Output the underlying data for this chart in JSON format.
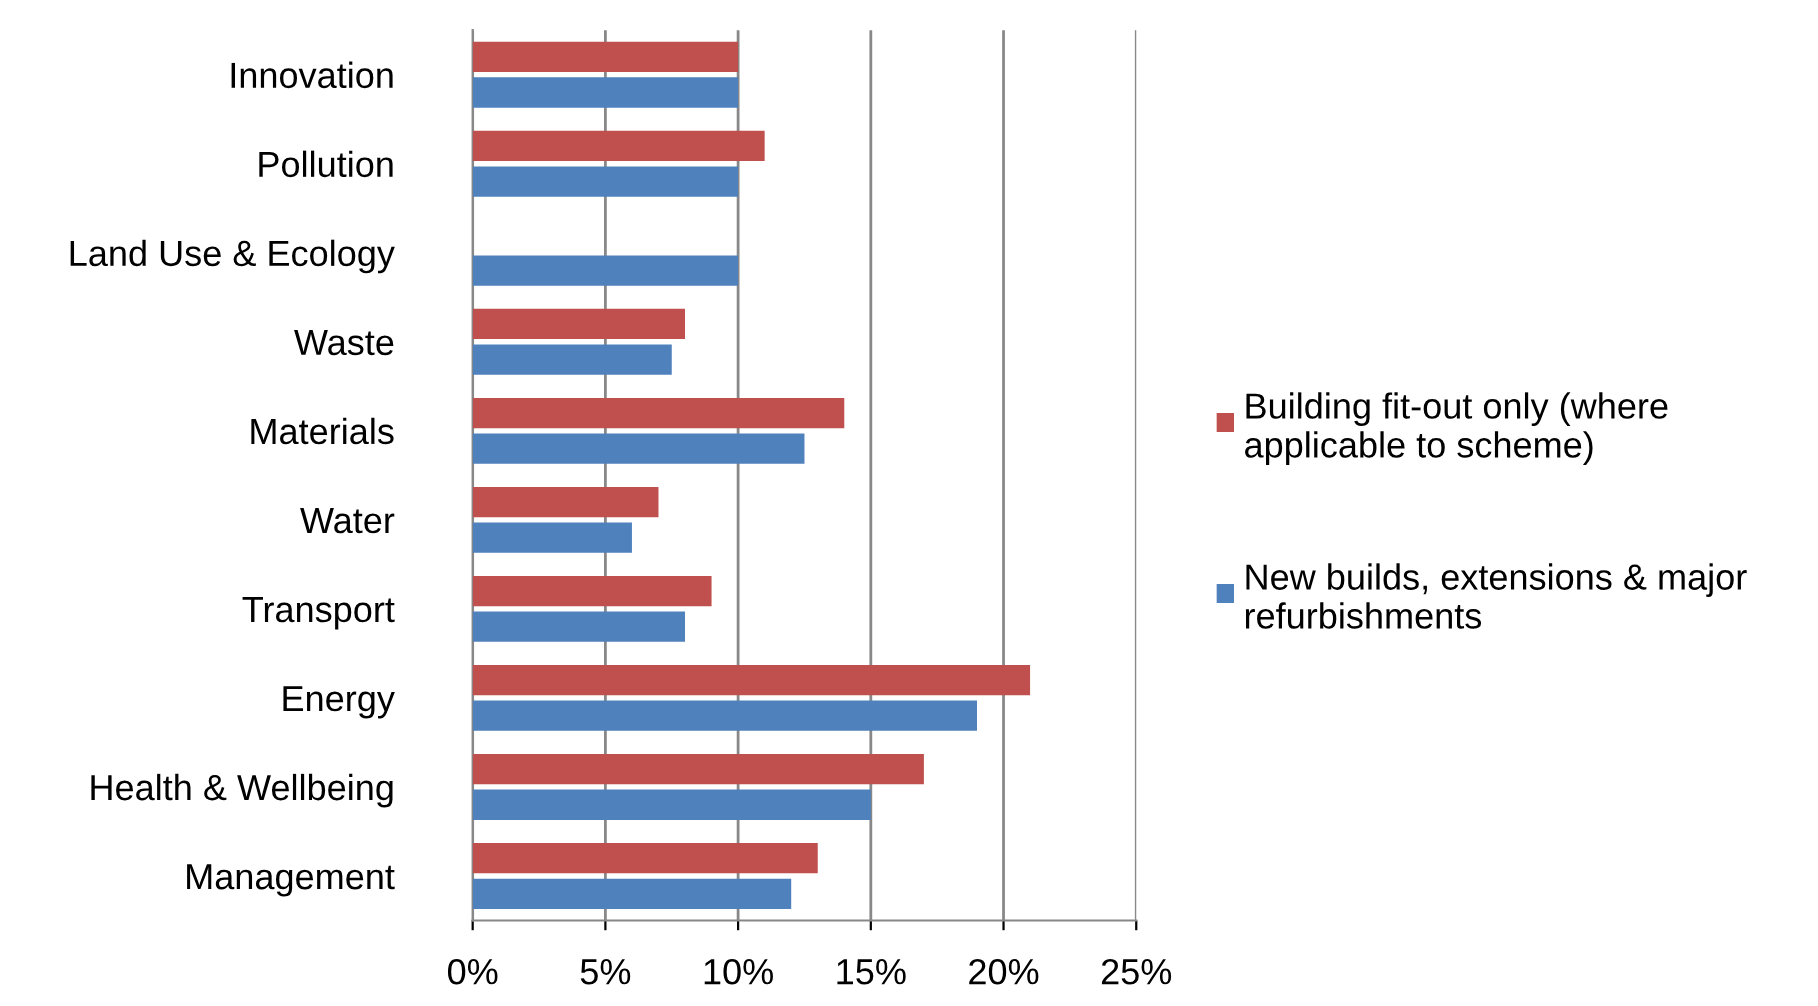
{
  "chart_data": {
    "type": "bar",
    "orientation": "horizontal",
    "categories": [
      "Innovation",
      "Pollution",
      "Land Use & Ecology",
      "Waste",
      "Materials",
      "Water",
      "Transport",
      "Energy",
      "Health & Wellbeing",
      "Management"
    ],
    "series": [
      {
        "name": "Building fit-out only (where applicable to scheme)",
        "color": "#c0504d",
        "values": [
          10,
          11,
          0,
          8,
          14,
          7,
          9,
          21,
          17,
          13
        ]
      },
      {
        "name": "New builds, extensions & major refurbishments",
        "color": "#4f81bd",
        "values": [
          10,
          10,
          10,
          7.5,
          12.5,
          6,
          8,
          19,
          15,
          12
        ]
      }
    ],
    "xlim": [
      0,
      25
    ],
    "xticks": [
      {
        "value": 0,
        "label": "0%"
      },
      {
        "value": 5,
        "label": "5%"
      },
      {
        "value": 10,
        "label": "10%"
      },
      {
        "value": 15,
        "label": "15%"
      },
      {
        "value": 20,
        "label": "20%"
      },
      {
        "value": 25,
        "label": "25%"
      }
    ],
    "grid": "x",
    "legend": "right"
  }
}
